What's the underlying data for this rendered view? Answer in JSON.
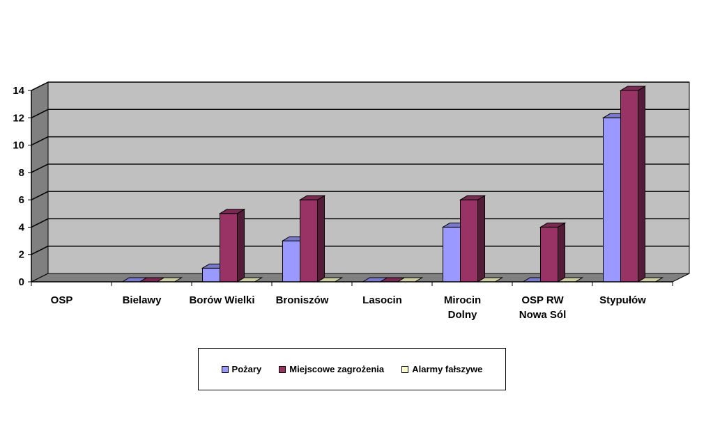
{
  "chart_data": {
    "type": "bar",
    "categories": [
      "OSP",
      "Bielawy",
      "Borów Wielki",
      "Broniszów",
      "Lasocin",
      "Mirocin Dolny",
      "OSP RW Nowa Sól",
      "Stypułów"
    ],
    "category_lines": [
      [
        "OSP"
      ],
      [
        "Bielawy"
      ],
      [
        "Borów Wielki"
      ],
      [
        "Broniszów"
      ],
      [
        "Lasocin"
      ],
      [
        "Mirocin",
        "Dolny"
      ],
      [
        "OSP RW",
        "Nowa Sól"
      ],
      [
        "Stypułów"
      ]
    ],
    "series": [
      {
        "name": "Pożary",
        "values": [
          null,
          0,
          1,
          3,
          0,
          4,
          0,
          12
        ],
        "color": "#9999ff"
      },
      {
        "name": "Miejscowe zagrożenia",
        "values": [
          null,
          0,
          5,
          6,
          0,
          6,
          4,
          14
        ],
        "color": "#993366"
      },
      {
        "name": "Alarmy fałszywe",
        "values": [
          null,
          0,
          0,
          0,
          0,
          0,
          0,
          0
        ],
        "color": "#ffffcc"
      }
    ],
    "yticks": [
      0,
      2,
      4,
      6,
      8,
      10,
      12,
      14
    ],
    "ylim": [
      0,
      14
    ],
    "grid": true,
    "legend_position": "bottom",
    "style": "3d-bar",
    "wall_color": "#c0c0c0"
  }
}
